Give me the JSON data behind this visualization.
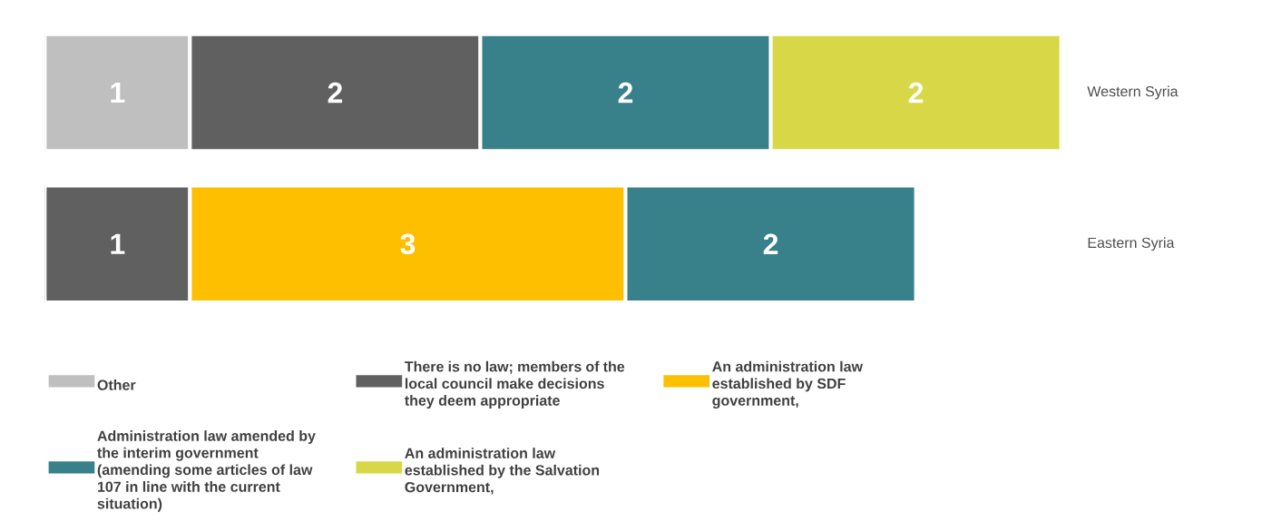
{
  "chart_data": {
    "type": "bar",
    "orientation": "horizontal",
    "stacked": true,
    "data_labels": true,
    "legend": "bottom",
    "categories": [
      "Western Syria",
      "Eastern Syria"
    ],
    "series": [
      {
        "name": "Other",
        "color": "#bfbfbf",
        "values": [
          1,
          null
        ]
      },
      {
        "name": "There is no law; members of the local council make decisions they deem appropriate",
        "color": "#606060",
        "values": [
          2,
          1
        ]
      },
      {
        "name": "An administration law established by SDF government,",
        "color": "#fdbf00",
        "values": [
          null,
          3
        ]
      },
      {
        "name": "Administration law amended by the interim government (amending some articles of law 107 in line with the current situation)",
        "color": "#38808a",
        "values": [
          2,
          2
        ]
      },
      {
        "name": "An administration law established by the Salvation Government,",
        "color": "#d8d748",
        "values": [
          2,
          null
        ]
      }
    ]
  }
}
